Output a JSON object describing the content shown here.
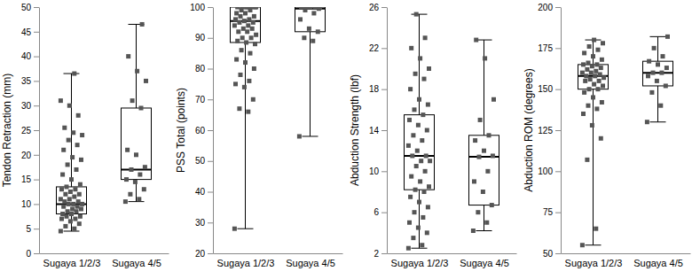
{
  "chart_data": [
    {
      "type": "box",
      "y_label": "Tendon Retraction (mm)",
      "categories": [
        "Sugaya 1/2/3",
        "Sugaya 4/5"
      ],
      "ylim": [
        0,
        50
      ],
      "yticks": [
        0,
        5,
        10,
        15,
        20,
        25,
        30,
        35,
        40,
        45,
        50
      ],
      "color": "#000000",
      "marker": "square",
      "boxes": [
        {
          "min": 4.5,
          "q1": 8,
          "median": 10,
          "q3": 13.5,
          "max": 36.5
        },
        {
          "min": 10.5,
          "q1": 15,
          "median": 17,
          "q3": 29.5,
          "max": 46.5
        }
      ],
      "points": [
        [
          4.5,
          5,
          5.5,
          6,
          6.5,
          7,
          7,
          7.5,
          7.5,
          8,
          8,
          8.5,
          8.5,
          9,
          9,
          9.5,
          9.5,
          10,
          10,
          10,
          10.5,
          10.5,
          11,
          11,
          11.5,
          12,
          12,
          12.5,
          13,
          13,
          13.5,
          14,
          15,
          16,
          17,
          18,
          19,
          19.5,
          21,
          22,
          23,
          24,
          24.5,
          25.5,
          28,
          30,
          31,
          36.5
        ],
        [
          10.5,
          11,
          12,
          13,
          14.5,
          15,
          16,
          17,
          17.5,
          20,
          21,
          29.5,
          31,
          35,
          37,
          40,
          46.5
        ]
      ]
    },
    {
      "type": "box",
      "y_label": "PSS Total  (points)",
      "categories": [
        "Sugaya 1/2/3",
        "Sugaya 4/5"
      ],
      "ylim": [
        20,
        100
      ],
      "yticks": [
        20,
        30,
        40,
        50,
        60,
        70,
        80,
        90,
        100
      ],
      "color": "#000000",
      "marker": "square",
      "boxes": [
        {
          "min": 28,
          "q1": 88.5,
          "median": 95.5,
          "q3": 100,
          "max": 100
        },
        {
          "min": 58,
          "q1": 92,
          "median": 99.5,
          "q3": 100,
          "max": 100
        }
      ],
      "points": [
        [
          28,
          66,
          67,
          70,
          74,
          75,
          76,
          78,
          80,
          82,
          83,
          85,
          86,
          88,
          88.5,
          89,
          90,
          90,
          91,
          92,
          92,
          93,
          93,
          94,
          94,
          95,
          95,
          95.5,
          96,
          96,
          97,
          97,
          98,
          98,
          99,
          99,
          100,
          100,
          100,
          100,
          100,
          100,
          100
        ],
        [
          58,
          89,
          90,
          92,
          93,
          96,
          98,
          99,
          99.5,
          100,
          100,
          100,
          100,
          100
        ]
      ]
    },
    {
      "type": "box",
      "y_label": "Abduction Strength (lbf)",
      "categories": [
        "Sugaya 1/2/3",
        "Sugaya 4/5"
      ],
      "ylim": [
        2,
        26
      ],
      "yticks": [
        2,
        6,
        10,
        14,
        18,
        22,
        26
      ],
      "color": "#000000",
      "marker": "square",
      "boxes": [
        {
          "min": 2.5,
          "q1": 8.2,
          "median": 11.5,
          "q3": 15.5,
          "max": 25.3
        },
        {
          "min": 4.2,
          "q1": 6.7,
          "median": 11.4,
          "q3": 13.5,
          "max": 22.8
        }
      ],
      "points": [
        [
          2.5,
          2.8,
          3.5,
          4,
          4.5,
          5,
          5.5,
          6,
          6.5,
          7,
          7.5,
          8,
          8.2,
          8.5,
          9,
          9.5,
          10,
          10.5,
          11,
          11,
          11.5,
          11.5,
          12,
          12.5,
          13,
          13.5,
          14,
          14.5,
          15,
          15.5,
          16,
          16.5,
          17,
          18,
          19,
          19.5,
          20,
          21,
          22,
          23,
          25.3
        ],
        [
          4.2,
          5,
          6,
          6.7,
          8,
          9,
          10,
          11.4,
          11.5,
          12,
          13,
          13.5,
          15,
          17,
          21,
          22.8
        ]
      ]
    },
    {
      "type": "box",
      "y_label": "Abduction ROM (degrees)",
      "categories": [
        "Sugaya 1/2/3",
        "Sugaya 4/5"
      ],
      "ylim": [
        50,
        200
      ],
      "yticks": [
        50,
        75,
        100,
        125,
        150,
        175,
        200
      ],
      "color": "#000000",
      "marker": "square",
      "boxes": [
        {
          "min": 55,
          "q1": 150,
          "median": 158,
          "q3": 165,
          "max": 180
        },
        {
          "min": 130,
          "q1": 152,
          "median": 160,
          "q3": 167,
          "max": 182
        }
      ],
      "points": [
        [
          55,
          65,
          107,
          120,
          128,
          135,
          138,
          140,
          142,
          145,
          148,
          150,
          150,
          152,
          153,
          155,
          155,
          156,
          157,
          158,
          158,
          159,
          160,
          160,
          161,
          162,
          163,
          164,
          165,
          165,
          166,
          168,
          170,
          172,
          174,
          176,
          178,
          180
        ],
        [
          130,
          140,
          148,
          152,
          155,
          158,
          160,
          160,
          163,
          165,
          167,
          170,
          175,
          182
        ]
      ]
    }
  ]
}
